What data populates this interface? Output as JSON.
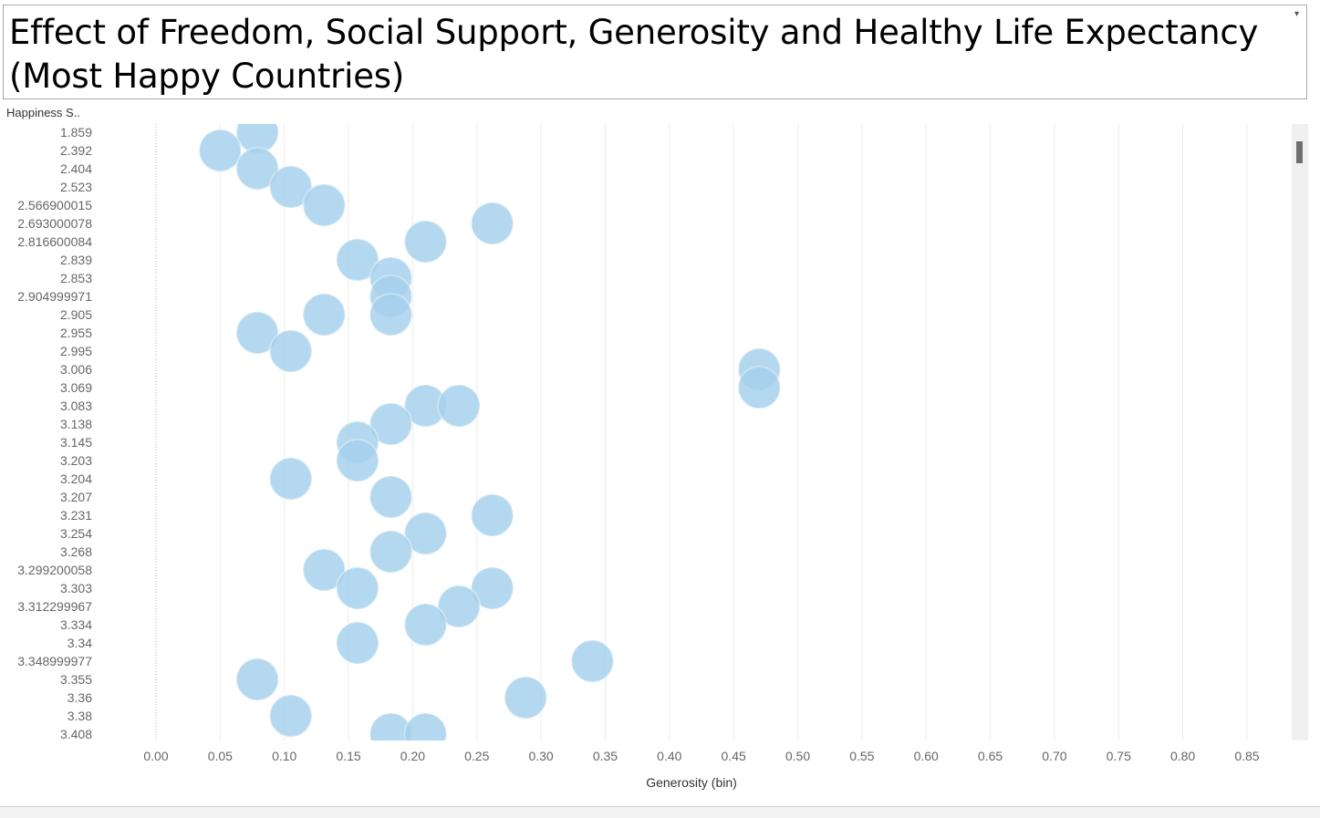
{
  "title": "Effect of Freedom, Social Support, Generosity and Healthy Life Expectancy (Most Happy Countries)",
  "title_dropdown_icon": "dropdown-arrow-icon",
  "chart_data": {
    "type": "scatter",
    "mark": "circle",
    "color": "#a3d0ec",
    "xlabel": "Generosity (bin)",
    "ylabel": "Happiness S..",
    "xlim": [
      -0.1,
      0.89
    ],
    "xticks": [
      "0.00",
      "0.05",
      "0.10",
      "0.15",
      "0.20",
      "0.25",
      "0.30",
      "0.35",
      "0.40",
      "0.45",
      "0.50",
      "0.55",
      "0.60",
      "0.65",
      "0.70",
      "0.75",
      "0.80",
      "0.85"
    ],
    "categories": [
      "1.859",
      "2.392",
      "2.404",
      "2.523",
      "2.566900015",
      "2.693000078",
      "2.816600084",
      "2.839",
      "2.853",
      "2.904999971",
      "2.905",
      "2.955",
      "2.995",
      "3.006",
      "3.069",
      "3.083",
      "3.138",
      "3.145",
      "3.203",
      "3.204",
      "3.207",
      "3.231",
      "3.254",
      "3.268",
      "3.299200058",
      "3.303",
      "3.312299967",
      "3.334",
      "3.34",
      "3.348999977",
      "3.355",
      "3.36",
      "3.38",
      "3.408"
    ],
    "points": [
      {
        "y": "1.859",
        "x": 0.079
      },
      {
        "y": "2.392",
        "x": 0.05
      },
      {
        "y": "2.404",
        "x": 0.079
      },
      {
        "y": "2.523",
        "x": 0.105
      },
      {
        "y": "2.566900015",
        "x": 0.131
      },
      {
        "y": "2.693000078",
        "x": 0.262
      },
      {
        "y": "2.816600084",
        "x": 0.21
      },
      {
        "y": "2.839",
        "x": 0.157
      },
      {
        "y": "2.853",
        "x": 0.183
      },
      {
        "y": "2.904999971",
        "x": 0.183
      },
      {
        "y": "2.905",
        "x": 0.131
      },
      {
        "y": "2.905",
        "x": 0.183
      },
      {
        "y": "2.955",
        "x": 0.079
      },
      {
        "y": "2.995",
        "x": 0.105
      },
      {
        "y": "3.006",
        "x": 0.47
      },
      {
        "y": "3.069",
        "x": 0.47
      },
      {
        "y": "3.083",
        "x": 0.21
      },
      {
        "y": "3.083",
        "x": 0.236
      },
      {
        "y": "3.138",
        "x": 0.183
      },
      {
        "y": "3.145",
        "x": 0.157
      },
      {
        "y": "3.203",
        "x": 0.157
      },
      {
        "y": "3.204",
        "x": 0.105
      },
      {
        "y": "3.207",
        "x": 0.183
      },
      {
        "y": "3.231",
        "x": 0.262
      },
      {
        "y": "3.254",
        "x": 0.21
      },
      {
        "y": "3.268",
        "x": 0.183
      },
      {
        "y": "3.299200058",
        "x": 0.131
      },
      {
        "y": "3.303",
        "x": 0.157
      },
      {
        "y": "3.303",
        "x": 0.262
      },
      {
        "y": "3.312299967",
        "x": 0.236
      },
      {
        "y": "3.334",
        "x": 0.21
      },
      {
        "y": "3.34",
        "x": 0.157
      },
      {
        "y": "3.348999977",
        "x": 0.34
      },
      {
        "y": "3.355",
        "x": 0.079
      },
      {
        "y": "3.36",
        "x": 0.288
      },
      {
        "y": "3.38",
        "x": 0.105
      },
      {
        "y": "3.408",
        "x": 0.183
      },
      {
        "y": "3.408",
        "x": 0.21
      }
    ],
    "grid": true
  }
}
